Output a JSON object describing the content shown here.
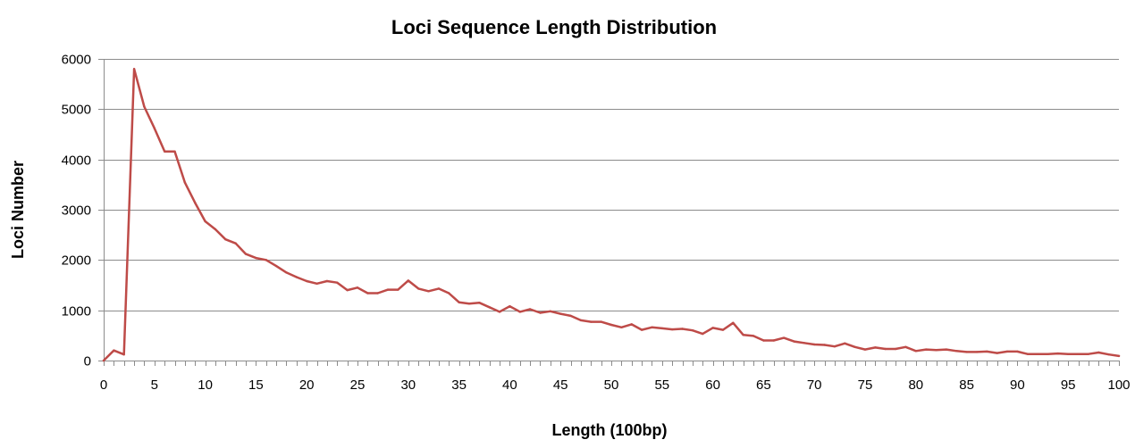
{
  "chart_data": {
    "type": "line",
    "title": "Loci Sequence Length Distribution",
    "xlabel": "Length (100bp)",
    "ylabel": "Loci Number",
    "xlim": [
      0,
      100
    ],
    "ylim": [
      0,
      6000
    ],
    "x_ticks": [
      0,
      5,
      10,
      15,
      20,
      25,
      30,
      35,
      40,
      45,
      50,
      55,
      60,
      65,
      70,
      75,
      80,
      85,
      90,
      95,
      100
    ],
    "y_ticks": [
      0,
      1000,
      2000,
      3000,
      4000,
      5000,
      6000
    ],
    "grid": true,
    "legend": "none",
    "series_color": "#be4b48",
    "x": [
      0,
      1,
      2,
      3,
      4,
      5,
      6,
      7,
      8,
      9,
      10,
      11,
      12,
      13,
      14,
      15,
      16,
      17,
      18,
      19,
      20,
      21,
      22,
      23,
      24,
      25,
      26,
      27,
      28,
      29,
      30,
      31,
      32,
      33,
      34,
      35,
      36,
      37,
      38,
      39,
      40,
      41,
      42,
      43,
      44,
      45,
      46,
      47,
      48,
      49,
      50,
      51,
      52,
      53,
      54,
      55,
      56,
      57,
      58,
      59,
      60,
      61,
      62,
      63,
      64,
      65,
      66,
      67,
      68,
      69,
      70,
      71,
      72,
      73,
      74,
      75,
      76,
      77,
      78,
      79,
      80,
      81,
      82,
      83,
      84,
      85,
      86,
      87,
      88,
      89,
      90,
      91,
      92,
      93,
      94,
      95,
      96,
      97,
      98,
      99,
      100
    ],
    "values": [
      0,
      200,
      120,
      5800,
      5050,
      4620,
      4160,
      4160,
      3540,
      3140,
      2770,
      2610,
      2410,
      2330,
      2120,
      2040,
      2000,
      1880,
      1750,
      1660,
      1580,
      1530,
      1580,
      1550,
      1400,
      1450,
      1340,
      1340,
      1410,
      1410,
      1590,
      1430,
      1380,
      1430,
      1340,
      1160,
      1130,
      1150,
      1060,
      970,
      1080,
      970,
      1020,
      950,
      980,
      930,
      890,
      800,
      770,
      770,
      710,
      660,
      720,
      610,
      660,
      640,
      620,
      630,
      600,
      530,
      650,
      610,
      750,
      510,
      490,
      400,
      400,
      450,
      380,
      350,
      320,
      310,
      280,
      340,
      270,
      220,
      260,
      230,
      230,
      270,
      190,
      220,
      210,
      220,
      190,
      170,
      170,
      180,
      150,
      180,
      180,
      130,
      130,
      130,
      140,
      130,
      130,
      130,
      160,
      120,
      90
    ]
  }
}
